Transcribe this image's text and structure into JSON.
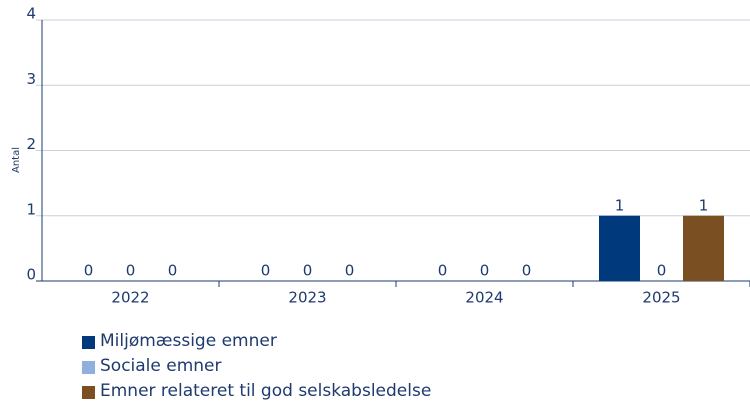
{
  "chart_data": {
    "type": "bar",
    "y_label": "Antal",
    "categories": [
      "2022",
      "2023",
      "2024",
      "2025"
    ],
    "series": [
      {
        "name": "Miljømæssige emner",
        "color": "#003a7d",
        "values": [
          0,
          0,
          0,
          1
        ]
      },
      {
        "name": "Sociale emner",
        "color": "#8fb0dc",
        "values": [
          0,
          0,
          0,
          0
        ]
      },
      {
        "name": "Emner relateret til god selskabsledelse",
        "color": "#7a4f22",
        "values": [
          0,
          0,
          0,
          1
        ]
      }
    ],
    "ylim": [
      0,
      4
    ],
    "yticks": [
      0,
      1,
      2,
      3,
      4
    ],
    "grid": true
  }
}
